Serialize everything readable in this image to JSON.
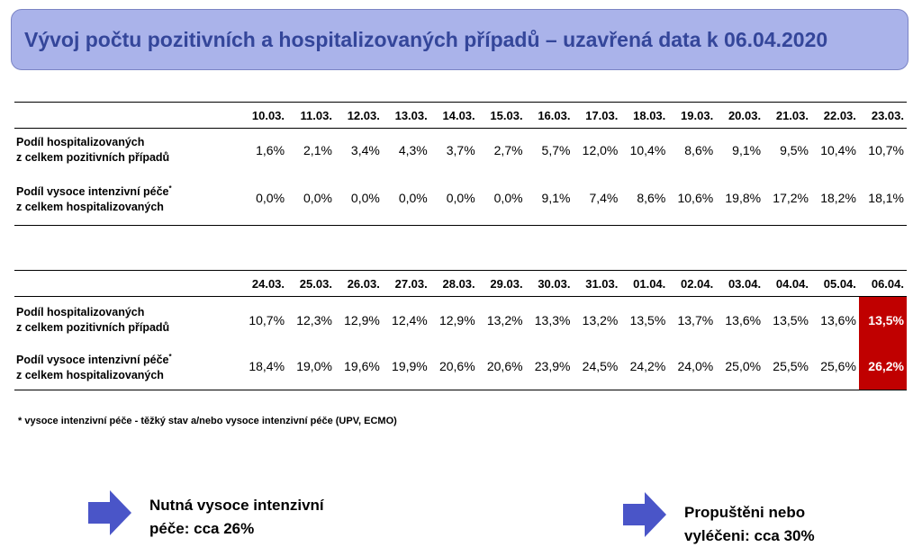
{
  "title": "Vývoj počtu pozitivních a hospitalizovaných případů – uzavřená data k 06.04.2020",
  "table1": {
    "dates": [
      "10.03.",
      "11.03.",
      "12.03.",
      "13.03.",
      "14.03.",
      "15.03.",
      "16.03.",
      "17.03.",
      "18.03.",
      "19.03.",
      "20.03.",
      "21.03.",
      "22.03.",
      "23.03."
    ],
    "row1": {
      "label_line1": "Podíl hospitalizovaných",
      "label_line2": "z celkem pozitivních případů",
      "values": [
        "1,6%",
        "2,1%",
        "3,4%",
        "4,3%",
        "3,7%",
        "2,7%",
        "5,7%",
        "12,0%",
        "10,4%",
        "8,6%",
        "9,1%",
        "9,5%",
        "10,4%",
        "10,7%"
      ]
    },
    "row2": {
      "label_line1": "Podíl vysoce intenzivní péče",
      "label_sup": "*",
      "label_line2": "z celkem hospitalizovaných",
      "values": [
        "0,0%",
        "0,0%",
        "0,0%",
        "0,0%",
        "0,0%",
        "0,0%",
        "9,1%",
        "7,4%",
        "8,6%",
        "10,6%",
        "19,8%",
        "17,2%",
        "18,2%",
        "18,1%"
      ]
    }
  },
  "table2": {
    "dates": [
      "24.03.",
      "25.03.",
      "26.03.",
      "27.03.",
      "28.03.",
      "29.03.",
      "30.03.",
      "31.03.",
      "01.04.",
      "02.04.",
      "03.04.",
      "04.04.",
      "05.04.",
      "06.04."
    ],
    "row1": {
      "label_line1": "Podíl hospitalizovaných",
      "label_line2": "z celkem pozitivních případů",
      "values": [
        "10,7%",
        "12,3%",
        "12,9%",
        "12,4%",
        "12,9%",
        "13,2%",
        "13,3%",
        "13,2%",
        "13,5%",
        "13,7%",
        "13,6%",
        "13,5%",
        "13,6%",
        "13,5%"
      ]
    },
    "row2": {
      "label_line1": "Podíl vysoce intenzivní péče",
      "label_sup": "*",
      "label_line2": "z celkem hospitalizovaných",
      "values": [
        "18,4%",
        "19,0%",
        "19,6%",
        "19,9%",
        "20,6%",
        "20,6%",
        "23,9%",
        "24,5%",
        "24,2%",
        "24,0%",
        "25,0%",
        "25,5%",
        "25,6%",
        "26,2%"
      ]
    }
  },
  "footnote": "* vysoce intenzivní péče - těžký stav a/nebo vysoce intenzivní péče (UPV, ECMO)",
  "callout_left": {
    "line1": "Nutná vysoce intenzivní",
    "line2": "péče: cca 26%"
  },
  "callout_right": {
    "line1": "Propuštěni nebo",
    "line2": "vyléčeni: cca 30%"
  },
  "colors": {
    "title_bg": "#aab3ea",
    "title_text": "#34469a",
    "highlight": "#c00000",
    "arrow": "#4a55c8"
  },
  "icons": {
    "arrow": "right-arrow-icon"
  }
}
